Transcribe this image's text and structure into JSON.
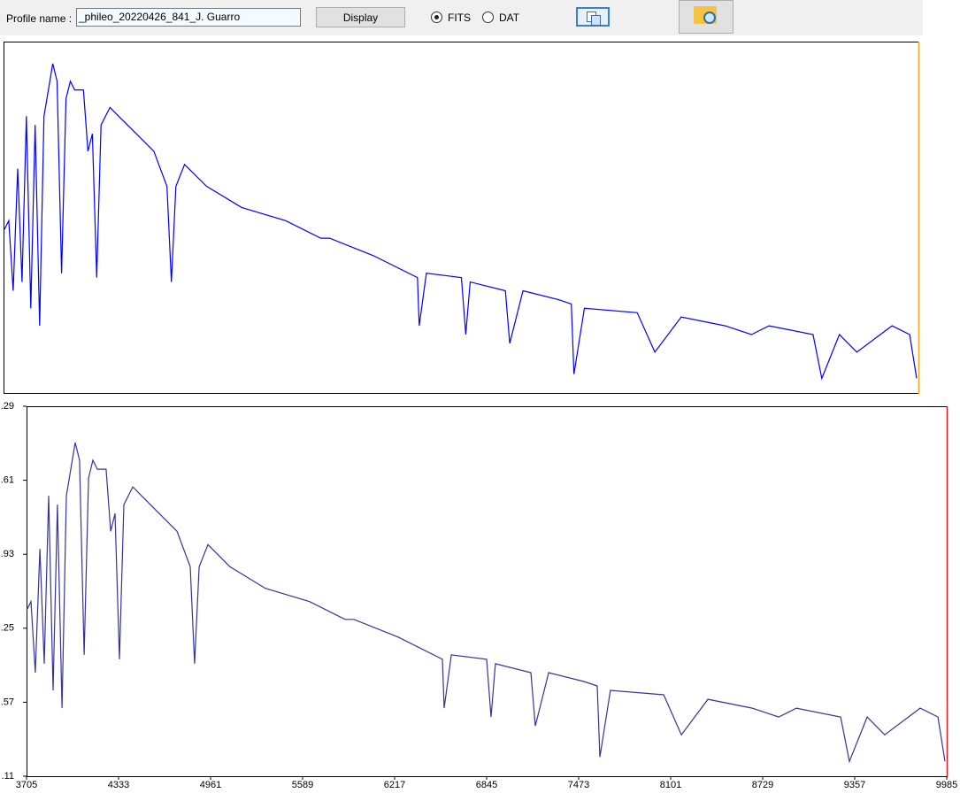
{
  "toolbar": {
    "profile_label": "Profile name :",
    "profile_name": "_phileo_20220426_841_J. Guarro",
    "display_button": "Display",
    "radio_fits": "FITS",
    "radio_dat": "DAT"
  },
  "chart_data": [
    {
      "type": "line",
      "xlim": [
        3705,
        9985
      ],
      "ylim": [
        0,
        4.8
      ],
      "x": [
        3705,
        3735,
        3765,
        3796,
        3826,
        3856,
        3886,
        3916,
        3947,
        3977,
        4007,
        4037,
        4067,
        4098,
        4128,
        4158,
        4188,
        4248,
        4279,
        4309,
        4339,
        4369,
        4430,
        4490,
        4611,
        4732,
        4822,
        4852,
        4883,
        4943,
        5094,
        5335,
        5637,
        5879,
        5939,
        6241,
        6543,
        6555,
        6604,
        6845,
        6875,
        6905,
        7147,
        7177,
        7268,
        7509,
        7600,
        7618,
        7690,
        8053,
        8174,
        8355,
        8657,
        8838,
        8959,
        9261,
        9321,
        9442,
        9562,
        9804,
        9925,
        9973
      ],
      "series": [
        {
          "color": "#0000ff",
          "values": [
            2.24,
            2.36,
            1.4,
            3.07,
            1.52,
            3.79,
            1.16,
            3.67,
            0.92,
            3.79,
            4.15,
            4.51,
            4.27,
            1.64,
            4.03,
            4.27,
            4.15,
            4.15,
            3.31,
            3.55,
            1.58,
            3.67,
            3.91,
            3.79,
            3.55,
            3.31,
            2.83,
            1.52,
            2.83,
            3.13,
            2.83,
            2.54,
            2.36,
            2.12,
            2.12,
            1.88,
            1.58,
            0.92,
            1.64,
            1.58,
            0.8,
            1.52,
            1.4,
            0.68,
            1.4,
            1.28,
            1.22,
            0.26,
            1.16,
            1.1,
            0.56,
            1.04,
            0.92,
            0.8,
            0.92,
            0.8,
            0.2,
            0.8,
            0.56,
            0.92,
            0.8,
            0.2
          ]
        }
      ]
    },
    {
      "type": "line",
      "xlim": [
        3705,
        9985
      ],
      "ylim": [
        0,
        5
      ],
      "xticks": [
        3705,
        4333,
        4961,
        5589,
        6217,
        6845,
        7473,
        8101,
        8729,
        9357,
        9985
      ],
      "yticks": [
        {
          "value": 5,
          "label": ".29"
        },
        {
          "value": 4,
          "label": ".61"
        },
        {
          "value": 3,
          "label": ".93"
        },
        {
          "value": 2,
          "label": ".25"
        },
        {
          "value": 1,
          "label": ".57"
        },
        {
          "value": 0,
          "label": ".11"
        }
      ],
      "x": [
        3705,
        3735,
        3765,
        3796,
        3826,
        3856,
        3886,
        3916,
        3947,
        3977,
        4007,
        4037,
        4067,
        4098,
        4128,
        4158,
        4188,
        4248,
        4279,
        4309,
        4339,
        4369,
        4430,
        4490,
        4611,
        4732,
        4822,
        4852,
        4883,
        4943,
        5094,
        5335,
        5637,
        5879,
        5939,
        6241,
        6543,
        6555,
        6604,
        6845,
        6875,
        6905,
        7147,
        7177,
        7268,
        7509,
        7600,
        7618,
        7690,
        8053,
        8174,
        8355,
        8657,
        8838,
        8959,
        9261,
        9321,
        9442,
        9562,
        9804,
        9925,
        9973
      ],
      "series": [
        {
          "color": "#34349a",
          "values": [
            2.24,
            2.36,
            1.4,
            3.07,
            1.52,
            3.79,
            1.16,
            3.67,
            0.92,
            3.79,
            4.15,
            4.51,
            4.27,
            1.64,
            4.03,
            4.27,
            4.15,
            4.15,
            3.31,
            3.55,
            1.58,
            3.67,
            3.91,
            3.79,
            3.55,
            3.31,
            2.83,
            1.52,
            2.83,
            3.13,
            2.83,
            2.54,
            2.36,
            2.12,
            2.12,
            1.88,
            1.58,
            0.92,
            1.64,
            1.58,
            0.8,
            1.52,
            1.4,
            0.68,
            1.4,
            1.28,
            1.22,
            0.26,
            1.16,
            1.1,
            0.56,
            1.04,
            0.92,
            0.8,
            0.92,
            0.8,
            0.2,
            0.8,
            0.56,
            0.92,
            0.8,
            0.2
          ]
        }
      ]
    }
  ]
}
